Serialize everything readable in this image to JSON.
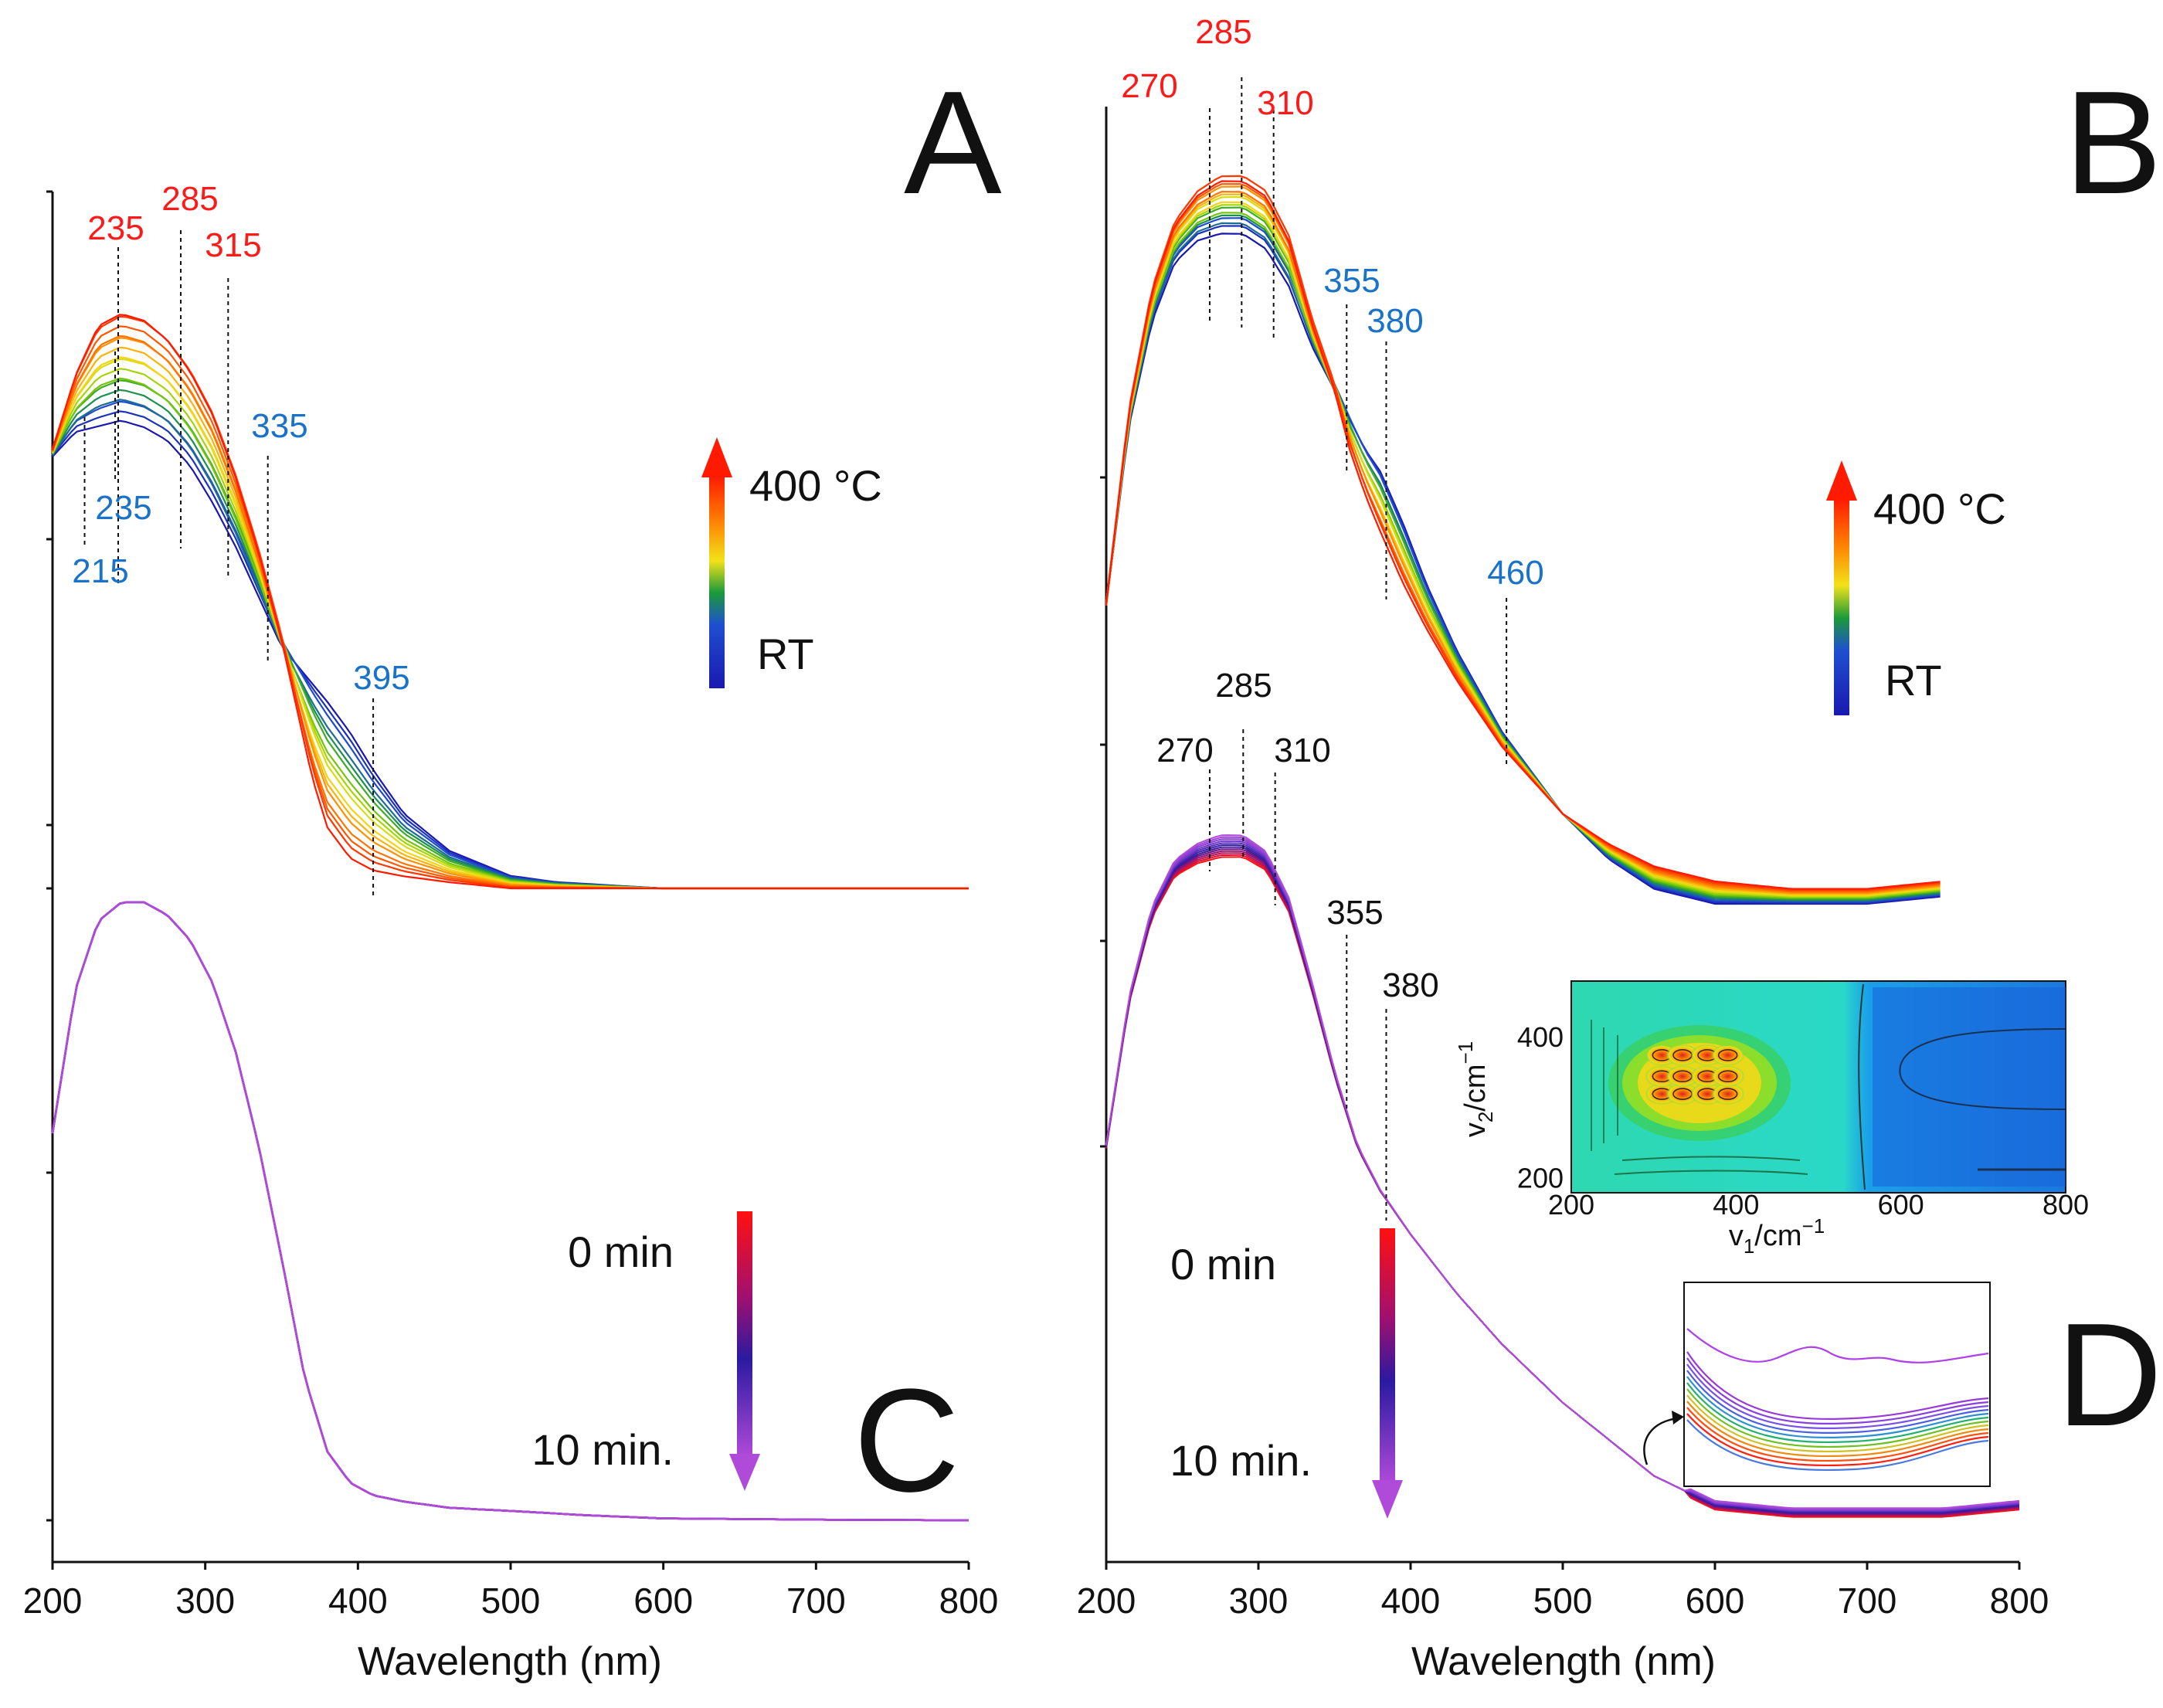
{
  "figure": {
    "panel_labels": [
      "A",
      "B",
      "C",
      "D"
    ],
    "xlabel": "Wavelength (nm)",
    "x_ticks": [
      "200",
      "300",
      "400",
      "500",
      "600",
      "700",
      "800"
    ]
  },
  "colors": {
    "heat_scale": [
      "#1a18b0",
      "#1f4fd0",
      "#1b9a3a",
      "#8bd000",
      "#f2e21a",
      "#ff9a00",
      "#ff5a00",
      "#ff1a00"
    ],
    "time_scale": [
      "#ff1010",
      "#a01070",
      "#2a1aa0",
      "#7a3ad0",
      "#b04ad8"
    ],
    "red_label": "#ff1a1a",
    "blue_label": "#1a73c8",
    "black": "#111111"
  },
  "legends": {
    "temp_top": "400 °C",
    "temp_bottom": "RT",
    "time_top": "0 min",
    "time_bottom": "10 min."
  },
  "chart_data": [
    {
      "panel": "A",
      "type": "line",
      "xlabel": "Wavelength (nm)",
      "xlim": [
        200,
        800
      ],
      "series_range": {
        "from": "RT",
        "to": "400 °C"
      },
      "series_count": 16,
      "envelope": {
        "x": [
          200,
          215,
          230,
          245,
          260,
          275,
          290,
          305,
          320,
          335,
          350,
          360,
          370,
          380,
          395,
          410,
          430,
          460,
          500,
          530,
          600,
          700,
          800
        ],
        "high_T": [
          0.7,
          0.82,
          0.9,
          0.92,
          0.91,
          0.88,
          0.83,
          0.76,
          0.66,
          0.54,
          0.4,
          0.29,
          0.18,
          0.1,
          0.05,
          0.03,
          0.02,
          0.01,
          0.0,
          0.0,
          0.0,
          0.0,
          0.0
        ],
        "low_T": [
          0.69,
          0.73,
          0.74,
          0.75,
          0.74,
          0.72,
          0.68,
          0.62,
          0.55,
          0.47,
          0.39,
          0.36,
          0.33,
          0.3,
          0.25,
          0.19,
          0.12,
          0.06,
          0.02,
          0.01,
          0.0,
          0.0,
          0.0
        ]
      },
      "annotations_red": [
        "235",
        "285",
        "315"
      ],
      "annotations_red_x": [
        243,
        284,
        315
      ],
      "annotations_blue": [
        "215",
        "235",
        "335",
        "395"
      ],
      "annotations_blue_x": [
        221,
        241,
        341,
        410
      ]
    },
    {
      "panel": "B",
      "type": "line",
      "xlabel": "Wavelength (nm)",
      "xlim": [
        200,
        800
      ],
      "series_range": {
        "from": "RT",
        "to": "400 °C"
      },
      "series_count": 16,
      "envelope": {
        "x": [
          200,
          215,
          230,
          245,
          260,
          275,
          290,
          305,
          320,
          335,
          350,
          360,
          370,
          380,
          395,
          410,
          430,
          460,
          500,
          530,
          560,
          600,
          650,
          700,
          750
        ],
        "high_T": [
          0.4,
          0.66,
          0.82,
          0.91,
          0.95,
          0.97,
          0.97,
          0.95,
          0.89,
          0.78,
          0.69,
          0.61,
          0.55,
          0.5,
          0.43,
          0.37,
          0.3,
          0.21,
          0.12,
          0.08,
          0.05,
          0.03,
          0.02,
          0.02,
          0.03
        ],
        "low_T": [
          0.4,
          0.64,
          0.78,
          0.86,
          0.89,
          0.9,
          0.9,
          0.88,
          0.83,
          0.75,
          0.69,
          0.65,
          0.61,
          0.58,
          0.51,
          0.43,
          0.34,
          0.23,
          0.12,
          0.06,
          0.02,
          0.0,
          0.0,
          0.0,
          0.01
        ]
      },
      "annotations_red": [
        "270",
        "285",
        "310"
      ],
      "annotations_red_x": [
        268,
        289,
        310
      ],
      "annotations_blue": [
        "355",
        "380",
        "460"
      ],
      "annotations_blue_x": [
        358,
        384,
        463
      ]
    },
    {
      "panel": "C",
      "type": "line",
      "xlabel": "Wavelength (nm)",
      "xlim": [
        200,
        800
      ],
      "series_range": {
        "from": "0 min",
        "to": "10 min."
      },
      "series_count": 6,
      "curve": {
        "x": [
          200,
          215,
          230,
          245,
          260,
          275,
          290,
          305,
          320,
          335,
          350,
          365,
          380,
          395,
          410,
          430,
          460,
          500,
          550,
          600,
          700,
          800
        ],
        "y": [
          0.62,
          0.85,
          0.96,
          0.99,
          0.99,
          0.97,
          0.93,
          0.86,
          0.75,
          0.6,
          0.42,
          0.23,
          0.11,
          0.06,
          0.04,
          0.03,
          0.02,
          0.015,
          0.008,
          0.003,
          0.001,
          0.0
        ]
      }
    },
    {
      "panel": "D",
      "type": "line",
      "xlabel": "Wavelength (nm)",
      "xlim": [
        200,
        800
      ],
      "series_range": {
        "from": "0 min",
        "to": "10 min."
      },
      "series_count": 12,
      "curve": {
        "x": [
          200,
          215,
          230,
          245,
          260,
          275,
          290,
          305,
          320,
          335,
          350,
          365,
          380,
          400,
          430,
          460,
          500,
          530,
          560,
          600,
          650,
          700,
          750,
          800
        ],
        "y": [
          0.5,
          0.7,
          0.82,
          0.88,
          0.9,
          0.91,
          0.91,
          0.89,
          0.83,
          0.72,
          0.6,
          0.5,
          0.44,
          0.38,
          0.3,
          0.23,
          0.15,
          0.1,
          0.05,
          0.01,
          0.0,
          0.0,
          0.0,
          0.01
        ]
      },
      "annotations_black": [
        "270",
        "285",
        "310",
        "355",
        "380"
      ],
      "annotations_black_x": [
        268,
        290,
        311,
        358,
        384
      ],
      "inset_2d": {
        "type": "heatmap",
        "xlabel": "v1/cm-1",
        "ylabel": "v2/cm-1",
        "x_ticks": [
          "200",
          "400",
          "600",
          "800"
        ],
        "y_ticks": [
          "200",
          "400"
        ],
        "xlim": [
          200,
          800
        ],
        "ylim": [
          180,
          480
        ],
        "hot_spots_x": [
          310,
          335,
          365,
          390
        ],
        "hot_spots_y": [
          320,
          345,
          375
        ]
      },
      "inset_zoom": {
        "region_x": [
          580,
          780
        ],
        "note": "magnified tail"
      }
    }
  ]
}
